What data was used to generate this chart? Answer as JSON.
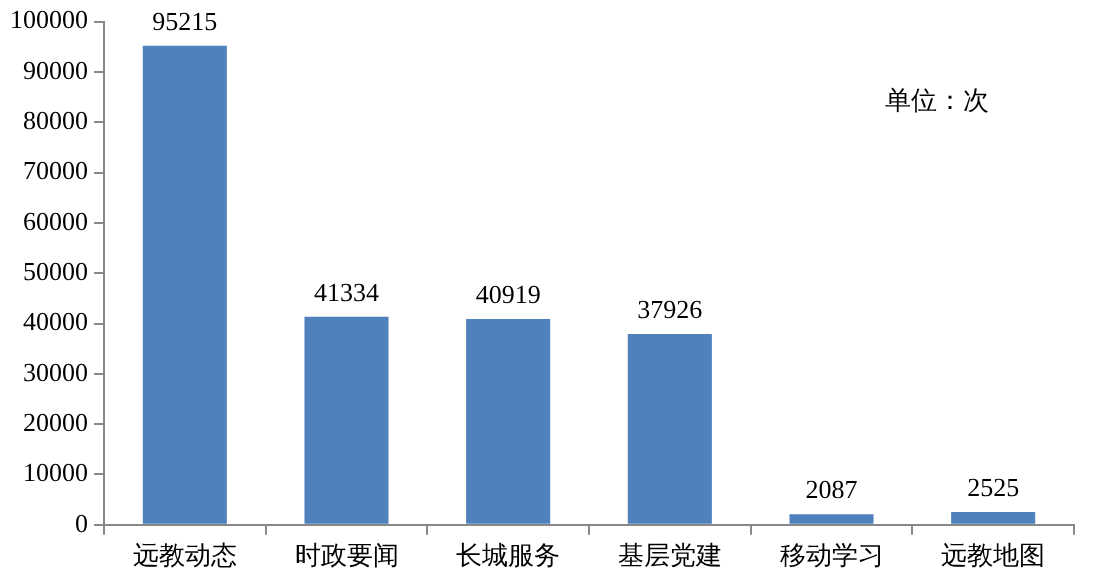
{
  "chart_data": {
    "type": "bar",
    "categories": [
      "远教动态",
      "时政要闻",
      "长城服务",
      "基层党建",
      "移动学习",
      "远教地图"
    ],
    "values": [
      95215,
      41334,
      40919,
      37926,
      2087,
      2525
    ],
    "color": "#4f81bd",
    "ylim": [
      0,
      100000
    ],
    "yticks": [
      0,
      10000,
      20000,
      30000,
      40000,
      50000,
      60000,
      70000,
      80000,
      90000,
      100000
    ],
    "grid": false,
    "legend": false,
    "data_labels": true,
    "annotations": [
      "单位：次"
    ]
  }
}
